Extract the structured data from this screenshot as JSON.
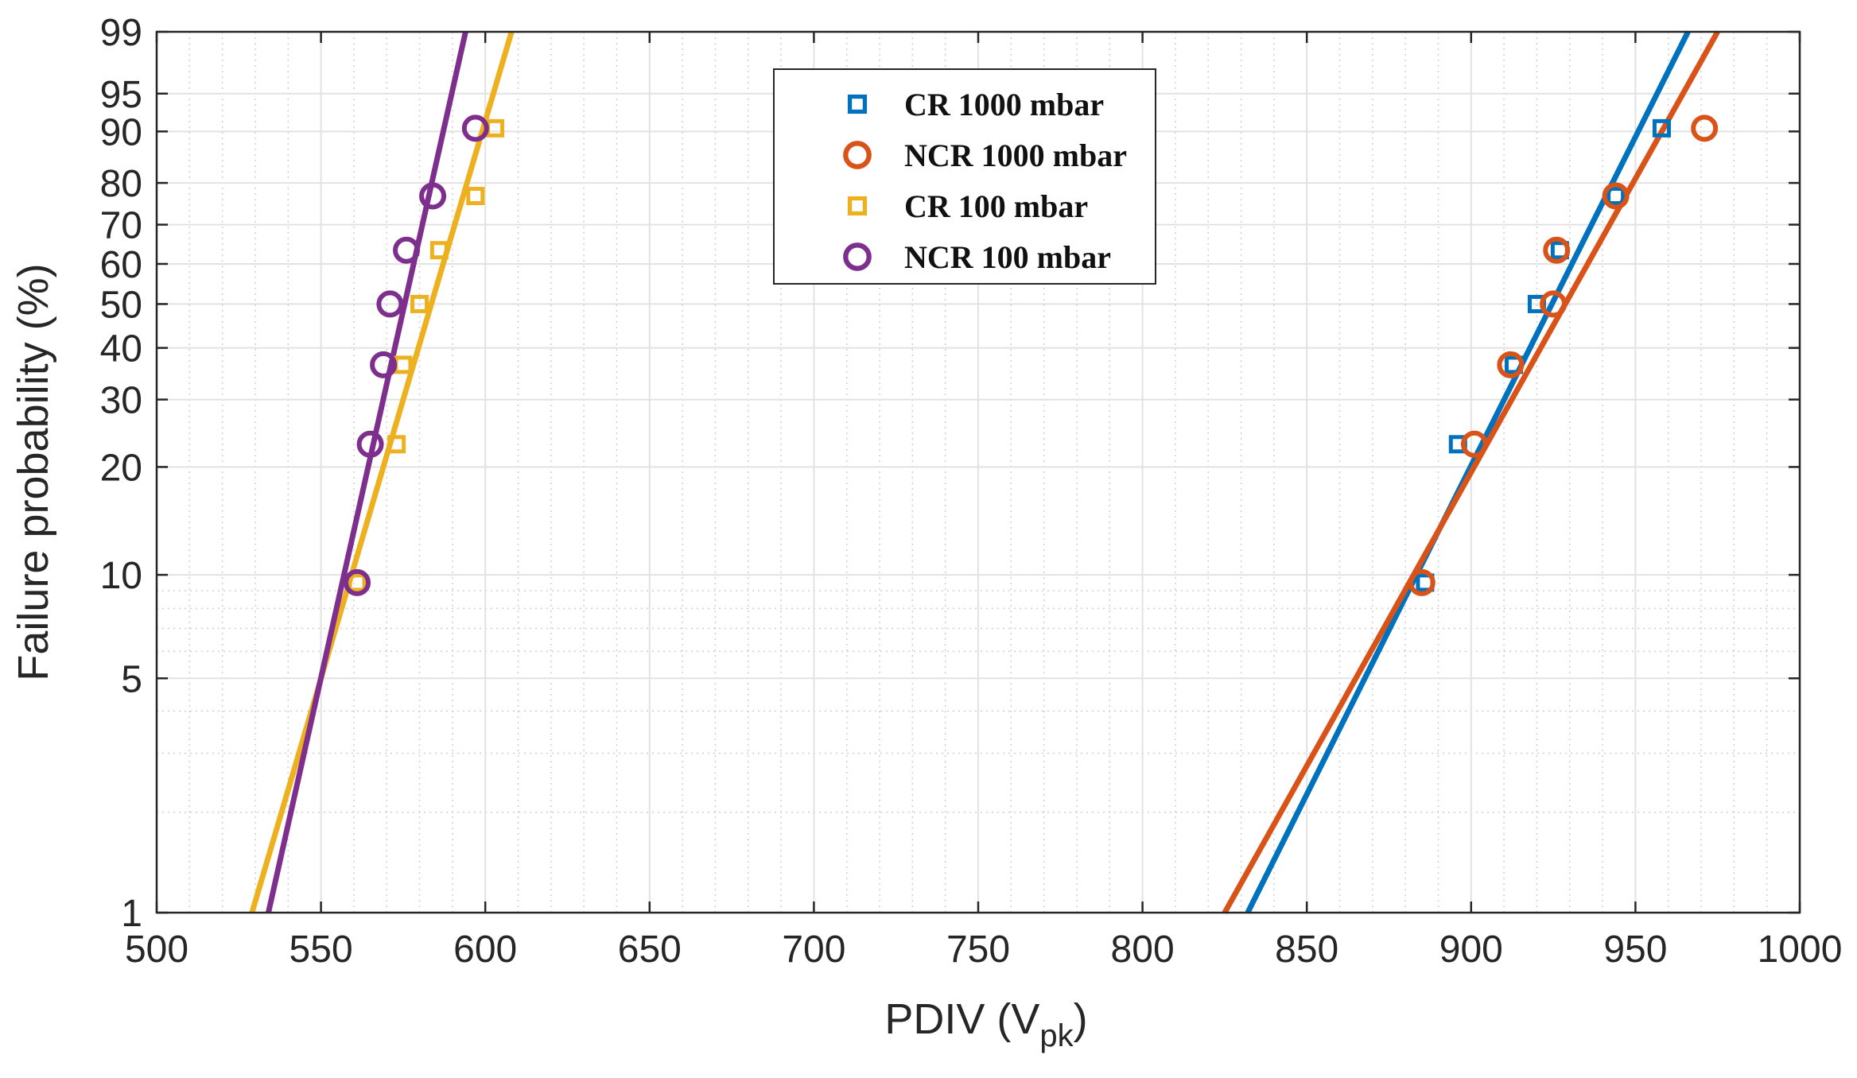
{
  "chart_data": {
    "type": "scatter",
    "title": "",
    "xlabel": {
      "main": "PDIV (V",
      "sub": "pk",
      "close": ")"
    },
    "ylabel": "Failure probability (%)",
    "xlim": [
      500,
      1000
    ],
    "ylim": [
      1,
      99
    ],
    "yscale": "weibull-probability",
    "grid": true,
    "legend_position": "top-center",
    "x_ticks": [
      500,
      550,
      600,
      650,
      700,
      750,
      800,
      850,
      900,
      950,
      1000
    ],
    "y_ticks": [
      1,
      5,
      10,
      20,
      30,
      40,
      50,
      60,
      70,
      80,
      90,
      95,
      99
    ],
    "series": [
      {
        "name": "CR 1000 mbar",
        "marker": "square",
        "color": "#0072BD",
        "points": [
          {
            "x": 886,
            "y": 9.5
          },
          {
            "x": 896,
            "y": 23
          },
          {
            "x": 913,
            "y": 36.5
          },
          {
            "x": 920,
            "y": 50
          },
          {
            "x": 927,
            "y": 63.5
          },
          {
            "x": 944,
            "y": 77
          },
          {
            "x": 958,
            "y": 90.5
          }
        ],
        "fit": {
          "x1": 832,
          "y1": 1,
          "x2": 966,
          "y2": 99
        }
      },
      {
        "name": "NCR 1000 mbar",
        "marker": "circle",
        "color": "#D95319",
        "points": [
          {
            "x": 885,
            "y": 9.5
          },
          {
            "x": 901,
            "y": 23
          },
          {
            "x": 912,
            "y": 36.5
          },
          {
            "x": 925,
            "y": 50
          },
          {
            "x": 926,
            "y": 63.5
          },
          {
            "x": 944,
            "y": 77
          },
          {
            "x": 971,
            "y": 90.5
          }
        ],
        "fit": {
          "x1": 825,
          "y1": 1,
          "x2": 975,
          "y2": 99
        }
      },
      {
        "name": "CR 100 mbar",
        "marker": "square",
        "color": "#EDB120",
        "points": [
          {
            "x": 561,
            "y": 9.5
          },
          {
            "x": 573,
            "y": 23
          },
          {
            "x": 575,
            "y": 36.5
          },
          {
            "x": 580,
            "y": 50
          },
          {
            "x": 586,
            "y": 63.5
          },
          {
            "x": 597,
            "y": 77
          },
          {
            "x": 603,
            "y": 90.5
          }
        ],
        "fit": {
          "x1": 529,
          "y1": 1,
          "x2": 608,
          "y2": 99
        }
      },
      {
        "name": "NCR 100 mbar",
        "marker": "circle",
        "color": "#7E2F8E",
        "points": [
          {
            "x": 561,
            "y": 9.5
          },
          {
            "x": 565,
            "y": 23
          },
          {
            "x": 569,
            "y": 36.5
          },
          {
            "x": 571,
            "y": 50
          },
          {
            "x": 576,
            "y": 63.5
          },
          {
            "x": 584,
            "y": 77
          },
          {
            "x": 597,
            "y": 90.5
          }
        ],
        "fit": {
          "x1": 534,
          "y1": 1,
          "x2": 594,
          "y2": 99
        }
      }
    ]
  }
}
